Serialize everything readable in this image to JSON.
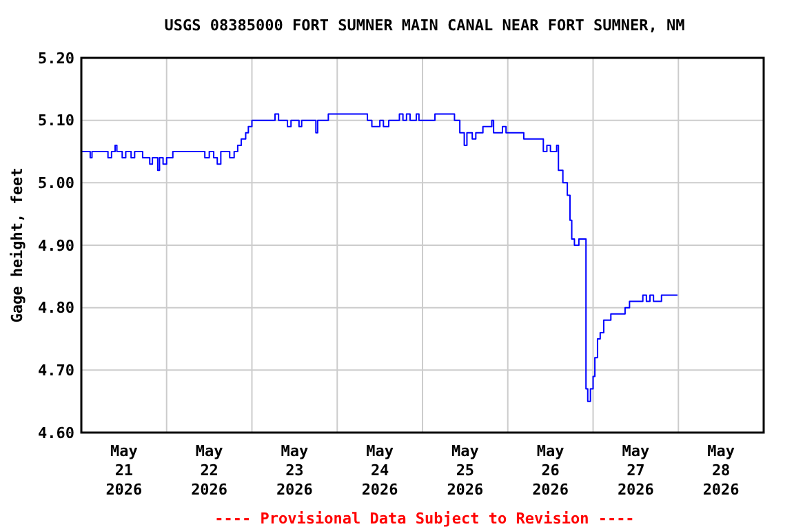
{
  "chart_data": {
    "type": "step",
    "title": "USGS 08385000 FORT SUMNER MAIN CANAL NEAR FORT SUMNER, NM",
    "ylabel": "Gage height, feet",
    "annotations": [
      "---- Provisional Data Subject to Revision ----"
    ],
    "xlim": [
      "2026-05-21T00:00",
      "2026-05-29T00:00"
    ],
    "xticks": [
      {
        "value": "2026-05-22T00:00",
        "label": null
      },
      {
        "value": "2026-05-23T00:00",
        "label": null
      },
      {
        "value": "2026-05-24T00:00",
        "label": null
      },
      {
        "value": "2026-05-25T00:00",
        "label": null
      },
      {
        "value": "2026-05-26T00:00",
        "label": null
      },
      {
        "value": "2026-05-27T00:00",
        "label": null
      },
      {
        "value": "2026-05-28T00:00",
        "label": null
      },
      {
        "value": "2026-05-21T12:00",
        "label": "May\n21\n2026"
      },
      {
        "value": "2026-05-22T12:00",
        "label": "May\n22\n2026"
      },
      {
        "value": "2026-05-23T12:00",
        "label": "May\n23\n2026"
      },
      {
        "value": "2026-05-24T12:00",
        "label": "May\n24\n2026"
      },
      {
        "value": "2026-05-25T12:00",
        "label": "May\n25\n2026"
      },
      {
        "value": "2026-05-26T12:00",
        "label": "May\n26\n2026"
      },
      {
        "value": "2026-05-27T12:00",
        "label": "May\n27\n2026"
      },
      {
        "value": "2026-05-28T12:00",
        "label": "May\n28\n2026"
      }
    ],
    "ylim": [
      4.6,
      5.2
    ],
    "yticks": [
      {
        "value": 4.6,
        "label": "4.60"
      },
      {
        "value": 4.7,
        "label": "4.70"
      },
      {
        "value": 4.8,
        "label": "4.80"
      },
      {
        "value": 4.9,
        "label": "4.90"
      },
      {
        "value": 5.0,
        "label": "5.00"
      },
      {
        "value": 5.1,
        "label": "5.10"
      },
      {
        "value": 5.2,
        "label": "5.20"
      }
    ],
    "grid": true,
    "series": [
      {
        "color": "#0000ff",
        "x": [
          "2026-05-21T00:00",
          "2026-05-21T02:30",
          "2026-05-21T03:00",
          "2026-05-21T07:30",
          "2026-05-21T08:30",
          "2026-05-21T09:30",
          "2026-05-21T10:00",
          "2026-05-21T11:30",
          "2026-05-21T12:30",
          "2026-05-21T14:00",
          "2026-05-21T15:00",
          "2026-05-21T17:15",
          "2026-05-21T19:15",
          "2026-05-21T20:00",
          "2026-05-21T21:30",
          "2026-05-21T22:00",
          "2026-05-21T23:00",
          "2026-05-22T00:00",
          "2026-05-22T01:45",
          "2026-05-22T10:45",
          "2026-05-22T12:00",
          "2026-05-22T13:15",
          "2026-05-22T14:15",
          "2026-05-22T15:15",
          "2026-05-22T17:45",
          "2026-05-22T19:00",
          "2026-05-22T20:00",
          "2026-05-22T21:00",
          "2026-05-22T22:15",
          "2026-05-22T23:00",
          "2026-05-23T00:00",
          "2026-05-23T06:30",
          "2026-05-23T07:30",
          "2026-05-23T10:00",
          "2026-05-23T11:00",
          "2026-05-23T13:15",
          "2026-05-23T14:00",
          "2026-05-23T18:00",
          "2026-05-23T18:30",
          "2026-05-23T21:30",
          "2026-05-24T08:30",
          "2026-05-24T09:45",
          "2026-05-24T12:00",
          "2026-05-24T13:00",
          "2026-05-24T14:30",
          "2026-05-24T17:30",
          "2026-05-24T18:30",
          "2026-05-24T19:30",
          "2026-05-24T20:30",
          "2026-05-24T22:15",
          "2026-05-24T23:00",
          "2026-05-25T03:30",
          "2026-05-25T09:00",
          "2026-05-25T10:30",
          "2026-05-25T11:45",
          "2026-05-25T12:30",
          "2026-05-25T14:00",
          "2026-05-25T15:00",
          "2026-05-25T17:00",
          "2026-05-25T19:30",
          "2026-05-25T20:00",
          "2026-05-25T22:30",
          "2026-05-25T23:30",
          "2026-05-26T04:30",
          "2026-05-26T10:00",
          "2026-05-26T11:00",
          "2026-05-26T12:00",
          "2026-05-26T13:45",
          "2026-05-26T14:15",
          "2026-05-26T15:30",
          "2026-05-26T16:45",
          "2026-05-26T17:30",
          "2026-05-26T18:00",
          "2026-05-26T18:45",
          "2026-05-26T20:00",
          "2026-05-26T21:45",
          "2026-05-26T22:00",
          "2026-05-26T22:30",
          "2026-05-26T23:15",
          "2026-05-27T00:00",
          "2026-05-27T00:30",
          "2026-05-27T01:15",
          "2026-05-27T02:00",
          "2026-05-27T03:00",
          "2026-05-27T05:00",
          "2026-05-27T09:00",
          "2026-05-27T10:15",
          "2026-05-27T14:00",
          "2026-05-27T15:00",
          "2026-05-27T16:00",
          "2026-05-27T17:00",
          "2026-05-27T19:15",
          "2026-05-27T23:45"
        ],
        "values": [
          5.05,
          5.04,
          5.05,
          5.04,
          5.05,
          5.06,
          5.05,
          5.04,
          5.05,
          5.04,
          5.05,
          5.04,
          5.03,
          5.04,
          5.02,
          5.04,
          5.03,
          5.04,
          5.05,
          5.04,
          5.05,
          5.04,
          5.03,
          5.05,
          5.04,
          5.05,
          5.06,
          5.07,
          5.08,
          5.09,
          5.1,
          5.11,
          5.1,
          5.09,
          5.1,
          5.09,
          5.1,
          5.08,
          5.1,
          5.11,
          5.1,
          5.09,
          5.1,
          5.09,
          5.1,
          5.11,
          5.1,
          5.11,
          5.1,
          5.11,
          5.1,
          5.11,
          5.1,
          5.08,
          5.06,
          5.08,
          5.07,
          5.08,
          5.09,
          5.1,
          5.08,
          5.09,
          5.08,
          5.07,
          5.05,
          5.06,
          5.05,
          5.06,
          5.02,
          5.0,
          4.98,
          4.94,
          4.91,
          4.9,
          4.91,
          4.91,
          4.67,
          4.65,
          4.67,
          4.69,
          4.72,
          4.75,
          4.76,
          4.78,
          4.79,
          4.8,
          4.81,
          4.82,
          4.81,
          4.82,
          4.81,
          4.82,
          4.82
        ]
      }
    ]
  }
}
